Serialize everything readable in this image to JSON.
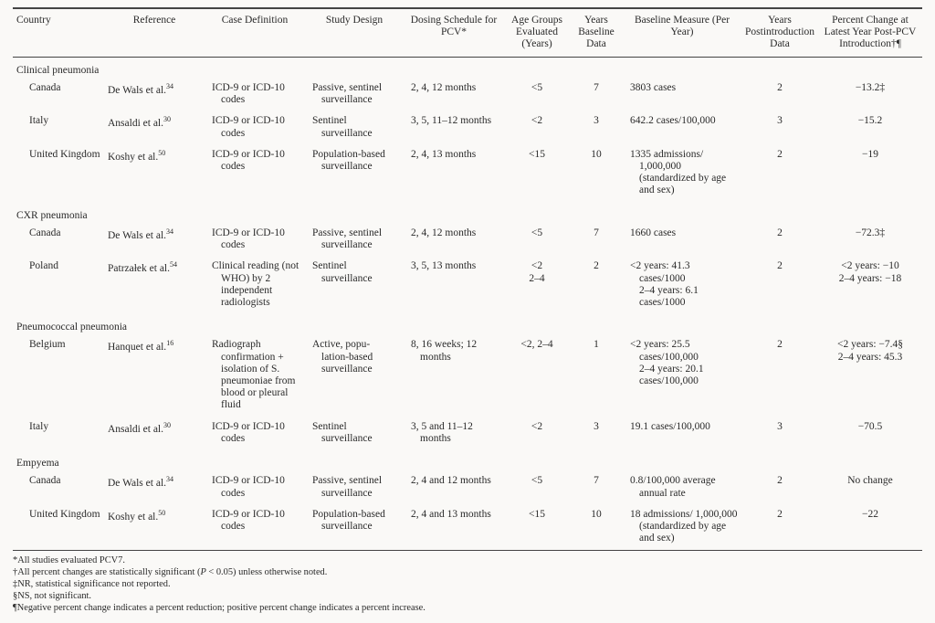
{
  "columns": [
    "Country",
    "Reference",
    "Case Definition",
    "Study Design",
    "Dosing Schedule for PCV*",
    "Age Groups Evaluated (Years)",
    "Years Baseline Data",
    "Baseline Measure (Per Year)",
    "Years Postintroduction Data",
    "Percent Change at Latest Year Post-PCV Introduction†¶"
  ],
  "sections": [
    {
      "title": "Clinical pneumonia",
      "rows": [
        {
          "country": "Canada",
          "ref": "De Wals et al.",
          "refnum": "34",
          "casedef": "ICD-9 or ICD-10 codes",
          "design": "Passive, sentinel surveillance",
          "dosing": "2, 4, 12 months",
          "age": "<5",
          "ybase": "7",
          "baseline": "3803 cases",
          "ypost": "2",
          "pct": "−13.2‡"
        },
        {
          "country": "Italy",
          "ref": "Ansaldi et al.",
          "refnum": "30",
          "casedef": "ICD-9 or ICD-10 codes",
          "design": "Sentinel surveillance",
          "dosing": "3, 5, 11–12 months",
          "age": "<2",
          "ybase": "3",
          "baseline": "642.2 cases/100,000",
          "ypost": "3",
          "pct": "−15.2"
        },
        {
          "country": "United Kingdom",
          "ref": "Koshy et al.",
          "refnum": "50",
          "casedef": "ICD-9 or ICD-10 codes",
          "design": "Population-based surveillance",
          "dosing": "2, 4, 13 months",
          "age": "<15",
          "ybase": "10",
          "baseline": "1335 admissions/ 1,000,000 (standardized by age and sex)",
          "ypost": "2",
          "pct": "−19"
        }
      ]
    },
    {
      "title": "CXR pneumonia",
      "rows": [
        {
          "country": "Canada",
          "ref": "De Wals et al.",
          "refnum": "34",
          "casedef": "ICD-9 or ICD-10 codes",
          "design": "Passive, sentinel surveillance",
          "dosing": "2, 4, 12 months",
          "age": "<5",
          "ybase": "7",
          "baseline": "1660 cases",
          "ypost": "2",
          "pct": "−72.3‡"
        },
        {
          "country": "Poland",
          "ref": "Patrzałek et al.",
          "refnum": "54",
          "casedef": "Clinical reading (not WHO) by 2 independent radiologists",
          "design": "Sentinel surveillance",
          "dosing": "3, 5, 13 months",
          "age": "<2\n2–4",
          "ybase": "2",
          "baseline": "<2 years: 41.3 cases/1000\n2–4 years: 6.1 cases/1000",
          "ypost": "2",
          "pct": "<2 years: −10\n2–4 years: −18"
        }
      ]
    },
    {
      "title": "Pneumococcal pneumonia",
      "rows": [
        {
          "country": "Belgium",
          "ref": "Hanquet et al.",
          "refnum": "16",
          "casedef": "Radiograph confirmation + isolation of S. pneumoniae from blood or pleural fluid",
          "design": "Active, popu- lation-based surveillance",
          "dosing": "8, 16 weeks; 12 months",
          "age": "<2, 2–4",
          "ybase": "1",
          "baseline": "<2 years: 25.5 cases/100,000\n2–4 years: 20.1 cases/100,000",
          "ypost": "2",
          "pct": "<2 years: −7.4§\n2–4 years: 45.3"
        },
        {
          "country": "Italy",
          "ref": "Ansaldi et al.",
          "refnum": "30",
          "casedef": "ICD-9 or ICD-10 codes",
          "design": "Sentinel surveillance",
          "dosing": "3, 5 and 11–12 months",
          "age": "<2",
          "ybase": "3",
          "baseline": "19.1 cases/100,000",
          "ypost": "3",
          "pct": "−70.5"
        }
      ]
    },
    {
      "title": "Empyema",
      "rows": [
        {
          "country": "Canada",
          "ref": "De Wals et al.",
          "refnum": "34",
          "casedef": "ICD-9 or ICD-10 codes",
          "design": "Passive, sentinel surveillance",
          "dosing": "2, 4 and 12 months",
          "age": "<5",
          "ybase": "7",
          "baseline": "0.8/100,000 average annual rate",
          "ypost": "2",
          "pct": "No change"
        },
        {
          "country": "United Kingdom",
          "ref": "Koshy et al.",
          "refnum": "50",
          "casedef": "ICD-9 or ICD-10 codes",
          "design": "Population-based surveillance",
          "dosing": "2, 4 and 13 months",
          "age": "<15",
          "ybase": "10",
          "baseline": "18 admissions/ 1,000,000 (standardized by age and sex)",
          "ypost": "2",
          "pct": "−22"
        }
      ]
    }
  ],
  "footnotes": [
    "*All studies evaluated PCV7.",
    "†All percent changes are statistically significant (P < 0.05) unless otherwise noted.",
    "‡NR, statistical significance not reported.",
    "§NS, not significant.",
    "¶Negative percent change indicates a percent reduction; positive percent change indicates a percent increase."
  ]
}
